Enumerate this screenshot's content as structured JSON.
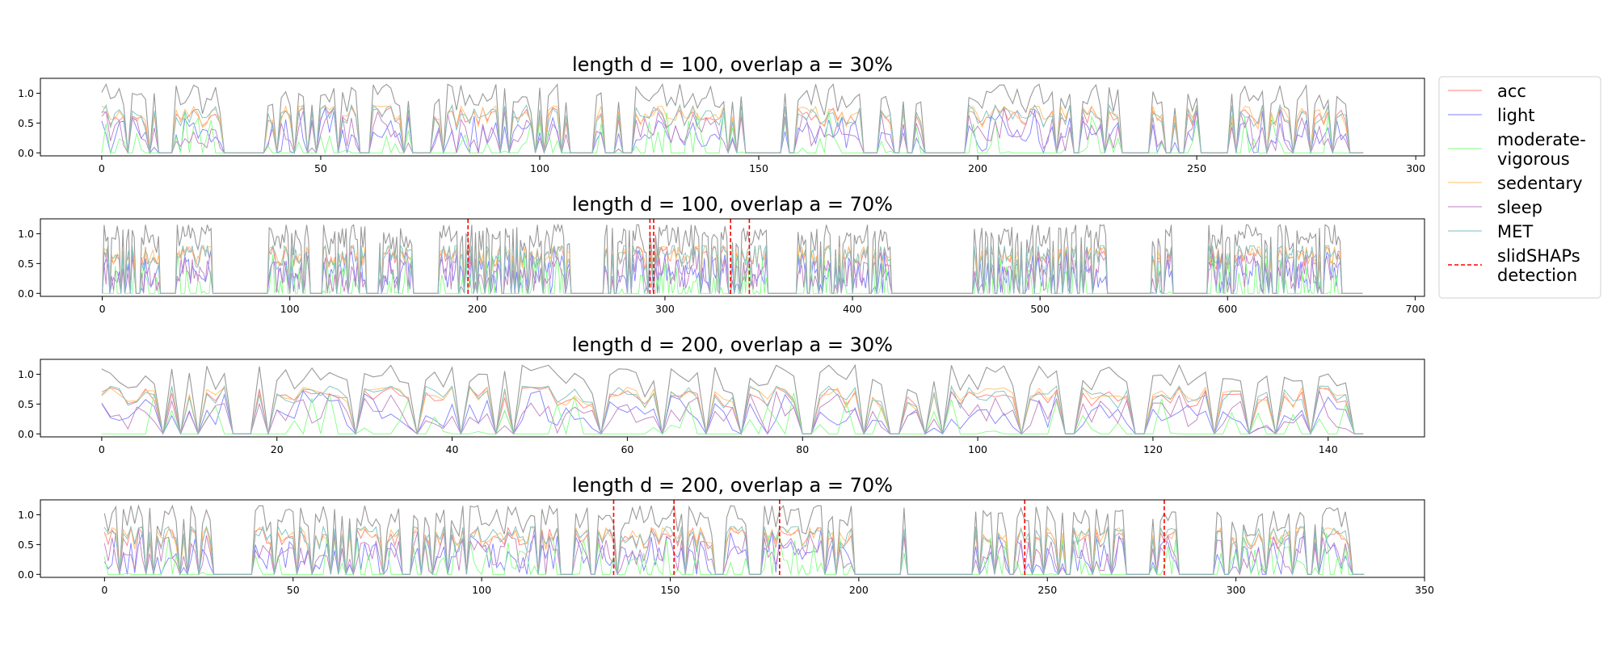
{
  "colors": {
    "acc": "#ff7f7f",
    "light": "#7f7fff",
    "moderate_vigorous": "#7fff7f",
    "sedentary": "#ffbf66",
    "sleep": "#bf7fbf",
    "MET": "#7fbfbf",
    "total": "#999999",
    "detection": "#ff0000"
  },
  "legend": [
    {
      "key": "acc",
      "lines": [
        "acc"
      ],
      "style": "solid"
    },
    {
      "key": "light",
      "lines": [
        "light"
      ],
      "style": "solid"
    },
    {
      "key": "moderate_vigorous",
      "lines": [
        "moderate-",
        "vigorous"
      ],
      "style": "solid"
    },
    {
      "key": "sedentary",
      "lines": [
        "sedentary"
      ],
      "style": "solid"
    },
    {
      "key": "sleep",
      "lines": [
        "sleep"
      ],
      "style": "solid"
    },
    {
      "key": "MET",
      "lines": [
        "MET"
      ],
      "style": "solid"
    },
    {
      "key": "detection",
      "lines": [
        "slidSHAPs",
        "detection"
      ],
      "style": "dashed"
    }
  ],
  "chart_data": [
    {
      "type": "line",
      "title": "length d = 100, overlap a = 30%",
      "xlim": [
        -14,
        302
      ],
      "ylim": [
        -0.05,
        1.25
      ],
      "xticks": [
        0,
        50,
        100,
        150,
        200,
        250,
        300
      ],
      "yticks": [
        "0.0",
        "0.5",
        "1.0"
      ],
      "x_max": 288,
      "detections": [],
      "active_blocks": [
        [
          0,
          12
        ],
        [
          17,
          27
        ],
        [
          38,
          48
        ],
        [
          50,
          58
        ],
        [
          62,
          70
        ],
        [
          76,
          106
        ],
        [
          112,
          114
        ],
        [
          118,
          146
        ],
        [
          156,
          174
        ],
        [
          178,
          188
        ],
        [
          198,
          232
        ],
        [
          240,
          250
        ],
        [
          258,
          284
        ]
      ]
    },
    {
      "type": "line",
      "title": "length d = 100, overlap a = 70%",
      "xlim": [
        -33,
        705
      ],
      "ylim": [
        -0.05,
        1.25
      ],
      "xticks": [
        0,
        100,
        200,
        300,
        400,
        500,
        600,
        700
      ],
      "yticks": [
        "0.0",
        "0.5",
        "1.0"
      ],
      "x_max": 672,
      "detections": [
        195,
        292,
        294,
        335,
        345
      ],
      "active_blocks": [
        [
          0,
          30
        ],
        [
          40,
          58
        ],
        [
          88,
          110
        ],
        [
          118,
          140
        ],
        [
          148,
          165
        ],
        [
          180,
          250
        ],
        [
          265,
          355
        ],
        [
          370,
          420
        ],
        [
          465,
          535
        ],
        [
          560,
          570
        ],
        [
          590,
          660
        ]
      ]
    },
    {
      "type": "line",
      "title": "length d = 200, overlap a = 30%",
      "xlim": [
        -7,
        151
      ],
      "ylim": [
        -0.05,
        1.25
      ],
      "xticks": [
        0,
        20,
        40,
        60,
        80,
        100,
        120,
        140
      ],
      "yticks": [
        "0.0",
        "0.5",
        "1.0"
      ],
      "x_max": 144,
      "detections": [],
      "active_blocks": [
        [
          0,
          6
        ],
        [
          8,
          14
        ],
        [
          18,
          30
        ],
        [
          30,
          38
        ],
        [
          38,
          56
        ],
        [
          58,
          72
        ],
        [
          74,
          90
        ],
        [
          92,
          118
        ],
        [
          120,
          126
        ],
        [
          128,
          142
        ]
      ]
    },
    {
      "type": "line",
      "title": "length d = 200, overlap a = 70%",
      "xlim": [
        -17,
        350
      ],
      "ylim": [
        -0.05,
        1.25
      ],
      "xticks": [
        0,
        50,
        100,
        150,
        200,
        250,
        300,
        350
      ],
      "yticks": [
        "0.0",
        "0.5",
        "1.0"
      ],
      "x_max": 334,
      "detections": [
        135,
        151,
        179,
        244,
        281
      ],
      "active_blocks": [
        [
          0,
          12
        ],
        [
          14,
          28
        ],
        [
          40,
          78
        ],
        [
          82,
          120
        ],
        [
          125,
          170
        ],
        [
          175,
          200
        ],
        [
          210,
          212
        ],
        [
          230,
          270
        ],
        [
          278,
          284
        ],
        [
          295,
          330
        ]
      ]
    }
  ]
}
